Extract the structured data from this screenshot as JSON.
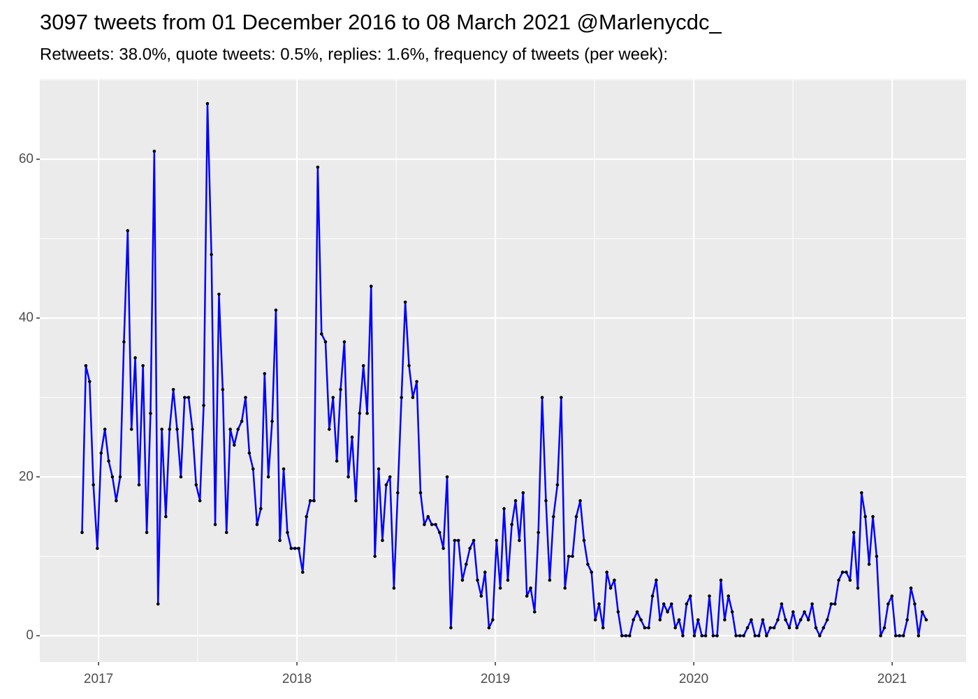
{
  "chart_data": {
    "type": "line",
    "title": "3097 tweets from 01 December 2016 to 08 March 2021 @Marlenycdc_",
    "subtitle": "Retweets: 38.0%, quote tweets: 0.5%, replies: 1.6%, frequency of tweets (per week):",
    "x": [
      2016.917,
      2016.936,
      2016.955,
      2016.974,
      2016.994,
      2017.013,
      2017.032,
      2017.051,
      2017.07,
      2017.089,
      2017.109,
      2017.128,
      2017.147,
      2017.166,
      2017.185,
      2017.204,
      2017.224,
      2017.243,
      2017.262,
      2017.281,
      2017.3,
      2017.319,
      2017.339,
      2017.358,
      2017.377,
      2017.396,
      2017.415,
      2017.434,
      2017.454,
      2017.473,
      2017.492,
      2017.511,
      2017.53,
      2017.549,
      2017.569,
      2017.588,
      2017.607,
      2017.626,
      2017.645,
      2017.664,
      2017.684,
      2017.703,
      2017.722,
      2017.741,
      2017.76,
      2017.779,
      2017.799,
      2017.818,
      2017.837,
      2017.856,
      2017.875,
      2017.894,
      2017.914,
      2017.933,
      2017.952,
      2017.971,
      2017.99,
      2018.009,
      2018.029,
      2018.048,
      2018.067,
      2018.086,
      2018.105,
      2018.124,
      2018.144,
      2018.163,
      2018.182,
      2018.201,
      2018.22,
      2018.239,
      2018.259,
      2018.278,
      2018.297,
      2018.316,
      2018.335,
      2018.354,
      2018.374,
      2018.393,
      2018.412,
      2018.431,
      2018.45,
      2018.469,
      2018.489,
      2018.508,
      2018.527,
      2018.546,
      2018.565,
      2018.584,
      2018.604,
      2018.623,
      2018.642,
      2018.661,
      2018.68,
      2018.699,
      2018.719,
      2018.738,
      2018.757,
      2018.776,
      2018.795,
      2018.814,
      2018.834,
      2018.853,
      2018.872,
      2018.891,
      2018.91,
      2018.929,
      2018.948,
      2018.968,
      2018.987,
      2019.006,
      2019.025,
      2019.044,
      2019.063,
      2019.083,
      2019.102,
      2019.121,
      2019.14,
      2019.159,
      2019.178,
      2019.198,
      2019.217,
      2019.236,
      2019.255,
      2019.274,
      2019.293,
      2019.313,
      2019.332,
      2019.351,
      2019.37,
      2019.389,
      2019.408,
      2019.428,
      2019.447,
      2019.466,
      2019.485,
      2019.504,
      2019.523,
      2019.543,
      2019.562,
      2019.581,
      2019.6,
      2019.619,
      2019.638,
      2019.658,
      2019.677,
      2019.696,
      2019.715,
      2019.734,
      2019.753,
      2019.773,
      2019.792,
      2019.811,
      2019.83,
      2019.849,
      2019.868,
      2019.888,
      2019.907,
      2019.926,
      2019.945,
      2019.964,
      2019.983,
      2020.003,
      2020.022,
      2020.041,
      2020.06,
      2020.079,
      2020.098,
      2020.118,
      2020.137,
      2020.156,
      2020.175,
      2020.194,
      2020.213,
      2020.233,
      2020.252,
      2020.271,
      2020.29,
      2020.309,
      2020.328,
      2020.348,
      2020.367,
      2020.386,
      2020.405,
      2020.424,
      2020.443,
      2020.463,
      2020.482,
      2020.501,
      2020.52,
      2020.539,
      2020.558,
      2020.578,
      2020.597,
      2020.616,
      2020.635,
      2020.654,
      2020.673,
      2020.693,
      2020.712,
      2020.731,
      2020.75,
      2020.769,
      2020.788,
      2020.807,
      2020.827,
      2020.846,
      2020.865,
      2020.884,
      2020.903,
      2020.922,
      2020.942,
      2020.961,
      2020.98,
      2020.999,
      2021.018,
      2021.037,
      2021.057,
      2021.076,
      2021.095,
      2021.114,
      2021.133,
      2021.152,
      2021.172
    ],
    "series": [
      {
        "color": "#0000ff",
        "marker_color": "#000000",
        "values": [
          13,
          34,
          32,
          19,
          11,
          23,
          26,
          22,
          20,
          17,
          20,
          37,
          51,
          26,
          35,
          19,
          34,
          13,
          28,
          61,
          4,
          26,
          15,
          26,
          31,
          26,
          20,
          30,
          30,
          26,
          19,
          17,
          29,
          67,
          48,
          14,
          43,
          31,
          13,
          26,
          24,
          26,
          27,
          30,
          23,
          21,
          14,
          16,
          33,
          20,
          27,
          41,
          12,
          21,
          13,
          11,
          11,
          11,
          8,
          15,
          17,
          17,
          59,
          38,
          37,
          26,
          30,
          22,
          31,
          37,
          20,
          25,
          17,
          28,
          34,
          28,
          44,
          10,
          21,
          12,
          19,
          20,
          6,
          18,
          30,
          42,
          34,
          30,
          32,
          18,
          14,
          15,
          14,
          14,
          13,
          11,
          20,
          1,
          12,
          12,
          7,
          9,
          11,
          12,
          7,
          5,
          8,
          1,
          2,
          12,
          6,
          16,
          7,
          14,
          17,
          12,
          18,
          5,
          6,
          3,
          13,
          30,
          17,
          7,
          15,
          19,
          30,
          6,
          10,
          10,
          15,
          17,
          12,
          9,
          8,
          2,
          4,
          1,
          8,
          6,
          7,
          3,
          0,
          0,
          0,
          2,
          3,
          2,
          1,
          1,
          5,
          7,
          2,
          4,
          3,
          4,
          1,
          2,
          0,
          4,
          5,
          0,
          2,
          0,
          0,
          5,
          0,
          0,
          7,
          2,
          5,
          3,
          0,
          0,
          0,
          1,
          2,
          0,
          0,
          2,
          0,
          1,
          1,
          2,
          4,
          2,
          1,
          3,
          1,
          2,
          3,
          2,
          4,
          1,
          0,
          1,
          2,
          4,
          4,
          7,
          8,
          8,
          7,
          13,
          6,
          18,
          15,
          9,
          15,
          10,
          0,
          1,
          4,
          5,
          0,
          0,
          0,
          2,
          6,
          4,
          0,
          3,
          2
        ]
      }
    ],
    "xlim": [
      2016.704,
      2021.373
    ],
    "xticks": [
      2017,
      2018,
      2019,
      2020,
      2021
    ],
    "ylim": [
      -3.3,
      70.1
    ],
    "yticks": [
      0,
      20,
      40,
      60
    ],
    "grid": true,
    "panel_color": "#ebebeb"
  }
}
